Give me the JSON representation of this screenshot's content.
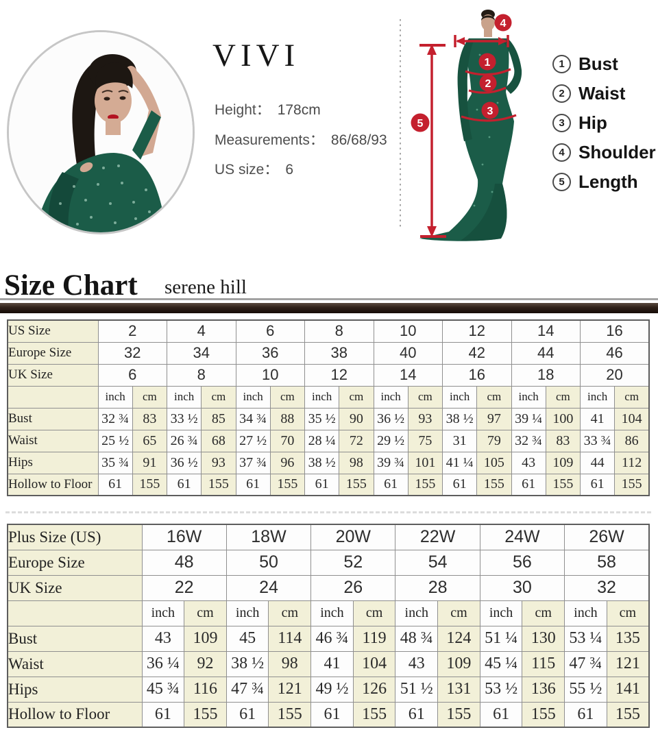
{
  "profile": {
    "brand": "VIVI",
    "lines": [
      {
        "label": "Height：",
        "value": "178cm"
      },
      {
        "label": "Measurements：",
        "value": "86/68/93"
      },
      {
        "label": "US size：",
        "value": "6"
      }
    ]
  },
  "figure": {
    "marker_labels": [
      "1",
      "2",
      "3",
      "4",
      "5"
    ],
    "legend": [
      {
        "num": "1",
        "label": "Bust"
      },
      {
        "num": "2",
        "label": "Waist"
      },
      {
        "num": "3",
        "label": "Hip"
      },
      {
        "num": "4",
        "label": "Shoulder"
      },
      {
        "num": "5",
        "label": "Length"
      }
    ]
  },
  "heading": {
    "title": "Size Chart",
    "subtitle": "serene hill"
  },
  "colors": {
    "accent_red": "#c4202e",
    "dress_green": "#1b5c48",
    "table_cream": "#f2f0d8",
    "divider_dark": "#2e1f17"
  },
  "table1": {
    "size_rows": [
      {
        "label": "US Size",
        "values": [
          "2",
          "4",
          "6",
          "8",
          "10",
          "12",
          "14",
          "16"
        ]
      },
      {
        "label": "Europe Size",
        "values": [
          "32",
          "34",
          "36",
          "38",
          "40",
          "42",
          "44",
          "46"
        ]
      },
      {
        "label": "UK Size",
        "values": [
          "6",
          "8",
          "10",
          "12",
          "14",
          "16",
          "18",
          "20"
        ]
      }
    ],
    "unit_labels": {
      "inch": "inch",
      "cm": "cm"
    },
    "measure_rows": [
      {
        "label": "Bust",
        "cells": [
          [
            "32 ¾",
            "83"
          ],
          [
            "33 ½",
            "85"
          ],
          [
            "34 ¾",
            "88"
          ],
          [
            "35 ½",
            "90"
          ],
          [
            "36 ½",
            "93"
          ],
          [
            "38 ½",
            "97"
          ],
          [
            "39 ¼",
            "100"
          ],
          [
            "41",
            "104"
          ]
        ]
      },
      {
        "label": "Waist",
        "cells": [
          [
            "25 ½",
            "65"
          ],
          [
            "26 ¾",
            "68"
          ],
          [
            "27 ½",
            "70"
          ],
          [
            "28 ¼",
            "72"
          ],
          [
            "29 ½",
            "75"
          ],
          [
            "31",
            "79"
          ],
          [
            "32 ¾",
            "83"
          ],
          [
            "33 ¾",
            "86"
          ]
        ]
      },
      {
        "label": "Hips",
        "cells": [
          [
            "35 ¾",
            "91"
          ],
          [
            "36 ½",
            "93"
          ],
          [
            "37 ¾",
            "96"
          ],
          [
            "38 ½",
            "98"
          ],
          [
            "39 ¾",
            "101"
          ],
          [
            "41 ¼",
            "105"
          ],
          [
            "43",
            "109"
          ],
          [
            "44",
            "112"
          ]
        ]
      },
      {
        "label": "Hollow to Floor",
        "cells": [
          [
            "61",
            "155"
          ],
          [
            "61",
            "155"
          ],
          [
            "61",
            "155"
          ],
          [
            "61",
            "155"
          ],
          [
            "61",
            "155"
          ],
          [
            "61",
            "155"
          ],
          [
            "61",
            "155"
          ],
          [
            "61",
            "155"
          ]
        ]
      }
    ]
  },
  "table2": {
    "size_rows": [
      {
        "label": "Plus Size (US)",
        "values": [
          "16W",
          "18W",
          "20W",
          "22W",
          "24W",
          "26W"
        ]
      },
      {
        "label": "Europe Size",
        "values": [
          "48",
          "50",
          "52",
          "54",
          "56",
          "58"
        ]
      },
      {
        "label": "UK Size",
        "values": [
          "22",
          "24",
          "26",
          "28",
          "30",
          "32"
        ]
      }
    ],
    "unit_labels": {
      "inch": "inch",
      "cm": "cm"
    },
    "measure_rows": [
      {
        "label": "Bust",
        "cells": [
          [
            "43",
            "109"
          ],
          [
            "45",
            "114"
          ],
          [
            "46 ¾",
            "119"
          ],
          [
            "48 ¾",
            "124"
          ],
          [
            "51 ¼",
            "130"
          ],
          [
            "53 ¼",
            "135"
          ]
        ]
      },
      {
        "label": "Waist",
        "cells": [
          [
            "36 ¼",
            "92"
          ],
          [
            "38 ½",
            "98"
          ],
          [
            "41",
            "104"
          ],
          [
            "43",
            "109"
          ],
          [
            "45 ¼",
            "115"
          ],
          [
            "47 ¾",
            "121"
          ]
        ]
      },
      {
        "label": "Hips",
        "cells": [
          [
            "45 ¾",
            "116"
          ],
          [
            "47 ¾",
            "121"
          ],
          [
            "49 ½",
            "126"
          ],
          [
            "51 ½",
            "131"
          ],
          [
            "53 ½",
            "136"
          ],
          [
            "55 ½",
            "141"
          ]
        ]
      },
      {
        "label": "Hollow to Floor",
        "cells": [
          [
            "61",
            "155"
          ],
          [
            "61",
            "155"
          ],
          [
            "61",
            "155"
          ],
          [
            "61",
            "155"
          ],
          [
            "61",
            "155"
          ],
          [
            "61",
            "155"
          ]
        ]
      }
    ]
  }
}
